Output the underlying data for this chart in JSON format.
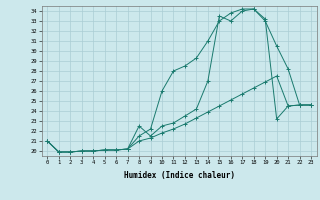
{
  "title": "",
  "xlabel": "Humidex (Indice chaleur)",
  "bg_color": "#cce8ec",
  "grid_color": "#aacdd4",
  "line_color": "#1a7a6e",
  "xlim": [
    -0.5,
    23.5
  ],
  "ylim": [
    19.5,
    34.5
  ],
  "xticks": [
    0,
    1,
    2,
    3,
    4,
    5,
    6,
    7,
    8,
    9,
    10,
    11,
    12,
    13,
    14,
    15,
    16,
    17,
    18,
    19,
    20,
    21,
    22,
    23
  ],
  "yticks": [
    20,
    21,
    22,
    23,
    24,
    25,
    26,
    27,
    28,
    29,
    30,
    31,
    32,
    33,
    34
  ],
  "line1_x": [
    0,
    1,
    2,
    3,
    4,
    5,
    6,
    7,
    8,
    9,
    10,
    11,
    12,
    13,
    14,
    15,
    16,
    17,
    18,
    19,
    20,
    21,
    22,
    23
  ],
  "line1_y": [
    21.0,
    19.9,
    19.9,
    20.0,
    20.0,
    20.1,
    20.1,
    20.2,
    21.5,
    22.2,
    26.0,
    28.0,
    28.5,
    29.3,
    31.0,
    33.0,
    33.8,
    34.2,
    34.2,
    33.0,
    30.5,
    28.2,
    24.6,
    24.6
  ],
  "line2_x": [
    0,
    1,
    2,
    3,
    4,
    5,
    6,
    7,
    8,
    9,
    10,
    11,
    12,
    13,
    14,
    15,
    16,
    17,
    18,
    19,
    20,
    21,
    22,
    23
  ],
  "line2_y": [
    21.0,
    19.9,
    19.9,
    20.0,
    20.0,
    20.1,
    20.1,
    20.2,
    22.5,
    21.5,
    22.5,
    22.8,
    23.5,
    24.2,
    27.0,
    33.5,
    33.0,
    34.0,
    34.2,
    33.2,
    23.2,
    24.5,
    24.6,
    24.6
  ],
  "line3_x": [
    0,
    1,
    2,
    3,
    4,
    5,
    6,
    7,
    8,
    9,
    10,
    11,
    12,
    13,
    14,
    15,
    16,
    17,
    18,
    19,
    20,
    21,
    22,
    23
  ],
  "line3_y": [
    21.0,
    19.9,
    19.9,
    20.0,
    20.0,
    20.1,
    20.1,
    20.2,
    21.0,
    21.3,
    21.8,
    22.2,
    22.7,
    23.3,
    23.9,
    24.5,
    25.1,
    25.7,
    26.3,
    26.9,
    27.5,
    24.5,
    24.6,
    24.6
  ]
}
